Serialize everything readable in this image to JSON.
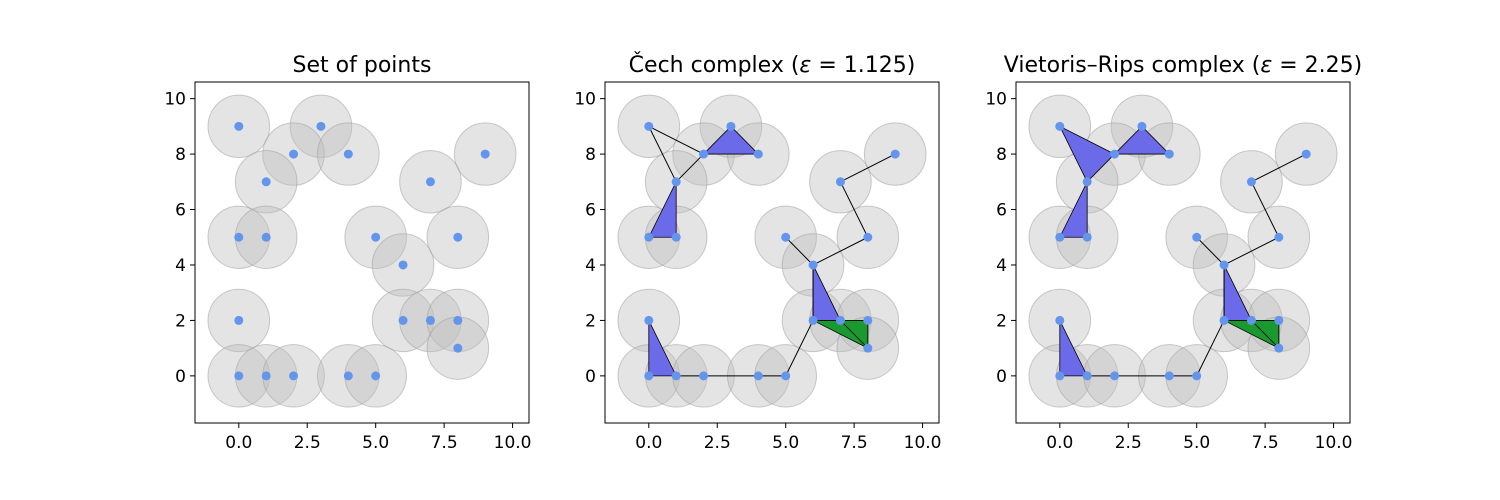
{
  "figure": {
    "colors": {
      "point": "#6495ed",
      "disk_fill": "#bfbfbf",
      "disk_stroke": "#a0a0a0",
      "triangle_blue": "#6b6ae8",
      "triangle_green": "#1a9a2e",
      "edge": "#000000"
    },
    "points": [
      [
        0,
        9
      ],
      [
        3,
        9
      ],
      [
        2,
        8
      ],
      [
        4,
        8
      ],
      [
        9,
        8
      ],
      [
        1,
        7
      ],
      [
        7,
        7
      ],
      [
        0,
        5
      ],
      [
        1,
        5
      ],
      [
        5,
        5
      ],
      [
        8,
        5
      ],
      [
        6,
        4
      ],
      [
        0,
        2
      ],
      [
        6,
        2
      ],
      [
        7,
        2
      ],
      [
        8,
        2
      ],
      [
        8,
        1
      ],
      [
        0,
        0
      ],
      [
        1,
        0
      ],
      [
        2,
        0
      ],
      [
        4,
        0
      ],
      [
        5,
        0
      ]
    ],
    "disk_radius": 1.125
  },
  "chart_data": [
    {
      "type": "scatter",
      "title": "Set of points",
      "title_parts": [
        {
          "text": "Set of points",
          "italic": false
        }
      ],
      "xlim": [
        -1.6,
        10.6
      ],
      "ylim": [
        -1.7,
        10.6
      ],
      "xticks": [
        0,
        2.5,
        5,
        7.5,
        10
      ],
      "xtick_labels": [
        "0.0",
        "2.5",
        "5.0",
        "7.5",
        "10.0"
      ],
      "yticks": [
        0,
        2,
        4,
        6,
        8,
        10
      ],
      "ytick_labels": [
        "0",
        "2",
        "4",
        "6",
        "8",
        "10"
      ],
      "edges": [],
      "triangles": []
    },
    {
      "type": "scatter",
      "title": "Čech complex (ε = 1.125)",
      "title_parts": [
        {
          "text": "Čech complex (",
          "italic": false
        },
        {
          "text": "ε",
          "italic": true
        },
        {
          "text": " = 1.125)",
          "italic": false
        }
      ],
      "xlim": [
        -1.6,
        10.6
      ],
      "ylim": [
        -1.7,
        10.6
      ],
      "xticks": [
        0,
        2.5,
        5,
        7.5,
        10
      ],
      "xtick_labels": [
        "0.0",
        "2.5",
        "5.0",
        "7.5",
        "10.0"
      ],
      "yticks": [
        0,
        2,
        4,
        6,
        8,
        10
      ],
      "ytick_labels": [
        "0",
        "2",
        "4",
        "6",
        "8",
        "10"
      ],
      "edges": [
        [
          [
            0,
            9
          ],
          [
            1,
            7
          ]
        ],
        [
          [
            0,
            9
          ],
          [
            2,
            8
          ]
        ],
        [
          [
            1,
            7
          ],
          [
            2,
            8
          ]
        ],
        [
          [
            7,
            7
          ],
          [
            9,
            8
          ]
        ],
        [
          [
            7,
            7
          ],
          [
            8,
            5
          ]
        ],
        [
          [
            8,
            5
          ],
          [
            6,
            4
          ]
        ],
        [
          [
            5,
            5
          ],
          [
            6,
            4
          ]
        ],
        [
          [
            6,
            4
          ],
          [
            6,
            2
          ]
        ],
        [
          [
            5,
            0
          ],
          [
            6,
            2
          ]
        ],
        [
          [
            1,
            0
          ],
          [
            2,
            0
          ]
        ],
        [
          [
            2,
            0
          ],
          [
            4,
            0
          ]
        ],
        [
          [
            4,
            0
          ],
          [
            5,
            0
          ]
        ]
      ],
      "triangles": [
        {
          "points": [
            [
              2,
              8
            ],
            [
              3,
              9
            ],
            [
              4,
              8
            ]
          ],
          "color": "blue"
        },
        {
          "points": [
            [
              0,
              5
            ],
            [
              1,
              5
            ],
            [
              1,
              7
            ]
          ],
          "color": "blue"
        },
        {
          "points": [
            [
              0,
              2
            ],
            [
              0,
              0
            ],
            [
              1,
              0
            ]
          ],
          "color": "blue"
        },
        {
          "points": [
            [
              6,
              4
            ],
            [
              6,
              2
            ],
            [
              7,
              2
            ]
          ],
          "color": "blue"
        },
        {
          "points": [
            [
              6,
              2
            ],
            [
              8,
              2
            ],
            [
              8,
              1
            ]
          ],
          "color": "green"
        },
        {
          "points": [
            [
              7,
              2
            ],
            [
              8,
              2
            ],
            [
              8,
              1
            ]
          ],
          "color": "green"
        }
      ]
    },
    {
      "type": "scatter",
      "title": "Vietoris–Rips complex (ε = 2.25)",
      "title_parts": [
        {
          "text": "Vietoris–Rips complex (",
          "italic": false
        },
        {
          "text": "ε",
          "italic": true
        },
        {
          "text": " = 2.25)",
          "italic": false
        }
      ],
      "xlim": [
        -1.6,
        10.6
      ],
      "ylim": [
        -1.7,
        10.6
      ],
      "xticks": [
        0,
        2.5,
        5,
        7.5,
        10
      ],
      "xtick_labels": [
        "0.0",
        "2.5",
        "5.0",
        "7.5",
        "10.0"
      ],
      "yticks": [
        0,
        2,
        4,
        6,
        8,
        10
      ],
      "ytick_labels": [
        "0",
        "2",
        "4",
        "6",
        "8",
        "10"
      ],
      "edges": [
        [
          [
            7,
            7
          ],
          [
            9,
            8
          ]
        ],
        [
          [
            7,
            7
          ],
          [
            8,
            5
          ]
        ],
        [
          [
            8,
            5
          ],
          [
            6,
            4
          ]
        ],
        [
          [
            5,
            5
          ],
          [
            6,
            4
          ]
        ],
        [
          [
            6,
            4
          ],
          [
            6,
            2
          ]
        ],
        [
          [
            5,
            0
          ],
          [
            6,
            2
          ]
        ],
        [
          [
            1,
            0
          ],
          [
            2,
            0
          ]
        ],
        [
          [
            2,
            0
          ],
          [
            4,
            0
          ]
        ],
        [
          [
            4,
            0
          ],
          [
            5,
            0
          ]
        ]
      ],
      "triangles": [
        {
          "points": [
            [
              0,
              9
            ],
            [
              2,
              8
            ],
            [
              1,
              7
            ]
          ],
          "color": "blue"
        },
        {
          "points": [
            [
              2,
              8
            ],
            [
              3,
              9
            ],
            [
              4,
              8
            ]
          ],
          "color": "blue"
        },
        {
          "points": [
            [
              0,
              5
            ],
            [
              1,
              5
            ],
            [
              1,
              7
            ]
          ],
          "color": "blue"
        },
        {
          "points": [
            [
              0,
              2
            ],
            [
              0,
              0
            ],
            [
              1,
              0
            ]
          ],
          "color": "blue"
        },
        {
          "points": [
            [
              6,
              4
            ],
            [
              6,
              2
            ],
            [
              7,
              2
            ]
          ],
          "color": "blue"
        },
        {
          "points": [
            [
              6,
              2
            ],
            [
              8,
              2
            ],
            [
              8,
              1
            ]
          ],
          "color": "green"
        },
        {
          "points": [
            [
              7,
              2
            ],
            [
              8,
              2
            ],
            [
              8,
              1
            ]
          ],
          "color": "green"
        }
      ]
    }
  ]
}
